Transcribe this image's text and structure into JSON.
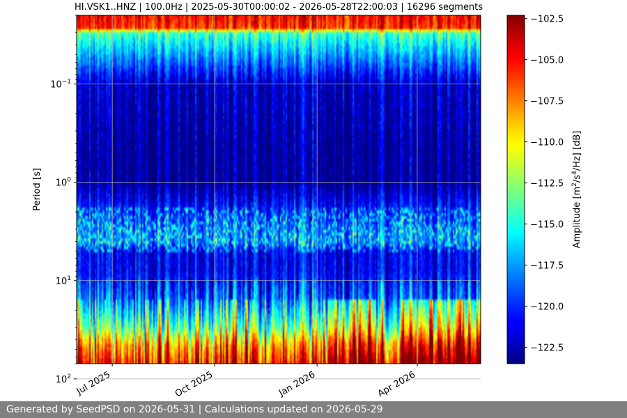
{
  "chart_data": {
    "type": "heatmap",
    "title": "HI.VSK1..HNZ | 100.0Hz | 2025-05-30T00:00:02 - 2026-05-28T22:00:03 | 16296 segments",
    "ylabel": "Period [s]",
    "y_scale": "log",
    "y_inverted": true,
    "ylim": [
      0.02,
      70
    ],
    "y_ticks": [
      {
        "value": 0.1,
        "base": "10",
        "exp": "−1"
      },
      {
        "value": 1,
        "base": "10",
        "exp": "0"
      },
      {
        "value": 10,
        "base": "10",
        "exp": "1"
      },
      {
        "value": 100,
        "base": "10",
        "exp": "2"
      }
    ],
    "xlim": [
      "2025-05-30",
      "2026-05-28"
    ],
    "x_ticks": [
      {
        "date": "2025-07-01",
        "label": "Jul 2025"
      },
      {
        "date": "2025-10-01",
        "label": "Oct 2025"
      },
      {
        "date": "2026-01-01",
        "label": "Jan 2026"
      },
      {
        "date": "2026-04-01",
        "label": "Apr 2026"
      }
    ],
    "grid": true,
    "colorbar": {
      "label_prefix": "Amplitude [m",
      "label_sup1": "2",
      "label_mid": "/s",
      "label_sup2": "4",
      "label_suffix": "/Hz] [dB]",
      "colormap": "jet",
      "range": [
        -123.5,
        -102.3
      ],
      "ticks": [
        "−102.5",
        "−105.0",
        "−107.5",
        "−110.0",
        "−112.5",
        "−115.0",
        "−117.5",
        "−120.0",
        "−122.5"
      ],
      "tick_values": [
        -102.5,
        -105,
        -107.5,
        -110,
        -112.5,
        -115,
        -117.5,
        -120,
        -122.5
      ]
    },
    "profile": {
      "period": [
        0.02,
        0.027,
        0.03,
        0.1,
        0.5,
        1,
        2,
        4,
        5,
        8,
        15,
        30,
        45,
        60,
        70
      ],
      "amplitude_db": [
        -105,
        -106,
        -114,
        -122,
        -123,
        -123,
        -120,
        -118,
        -121,
        -121,
        -119,
        -114,
        -109,
        -107,
        -106
      ]
    },
    "notes": "Approximate median amplitude profile; individual time segments vary around it."
  },
  "footer": {
    "text": "Generated by SeedPSD on 2026-05-31 | Calculations updated on 2026-05-29"
  }
}
